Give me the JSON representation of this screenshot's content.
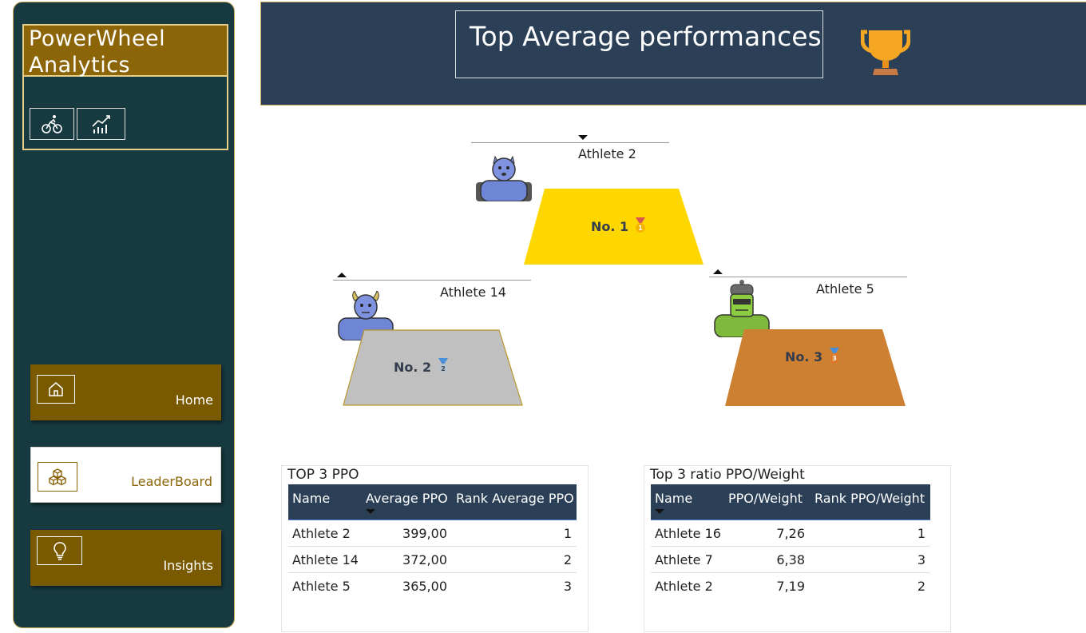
{
  "app": {
    "brand_line1": "PowerWheel",
    "brand_line2": "Analytics"
  },
  "sidebar": {
    "quick_icons": [
      "cyclist-icon",
      "trend-chart-icon"
    ],
    "nav": [
      {
        "label": "Home",
        "icon": "home-icon",
        "active": false
      },
      {
        "label": "LeaderBoard",
        "icon": "cubes-icon",
        "active": true
      },
      {
        "label": "Insights",
        "icon": "lightbulb-icon",
        "active": false
      }
    ]
  },
  "header": {
    "title": "Top Average performances",
    "icon": "trophy-icon"
  },
  "podium": {
    "first": {
      "athlete": "Athlete 2",
      "label": "No. 1",
      "medal": "gold-medal-icon",
      "color": "#ffd700"
    },
    "second": {
      "athlete": "Athlete 14",
      "label": "No. 2",
      "medal": "silver-medal-icon",
      "color": "#c0c0c0"
    },
    "third": {
      "athlete": "Athlete 5",
      "label": "No. 3",
      "medal": "bronze-medal-icon",
      "color": "#cd7f32"
    }
  },
  "table_ppo": {
    "title": "TOP 3 PPO",
    "columns": [
      "Name",
      "Average PPO",
      "Rank Average PPO"
    ],
    "rows": [
      [
        "Athlete 2",
        "399,00",
        "1"
      ],
      [
        "Athlete 14",
        "372,00",
        "2"
      ],
      [
        "Athlete 5",
        "365,00",
        "3"
      ]
    ]
  },
  "table_ratio": {
    "title": "Top 3 ratio PPO/Weight",
    "columns": [
      "Name",
      "PPO/Weight",
      "Rank PPO/Weight"
    ],
    "rows": [
      [
        "Athlete 16",
        "7,26",
        "1"
      ],
      [
        "Athlete 7",
        "6,38",
        "3"
      ],
      [
        "Athlete 2",
        "7,19",
        "2"
      ]
    ]
  }
}
